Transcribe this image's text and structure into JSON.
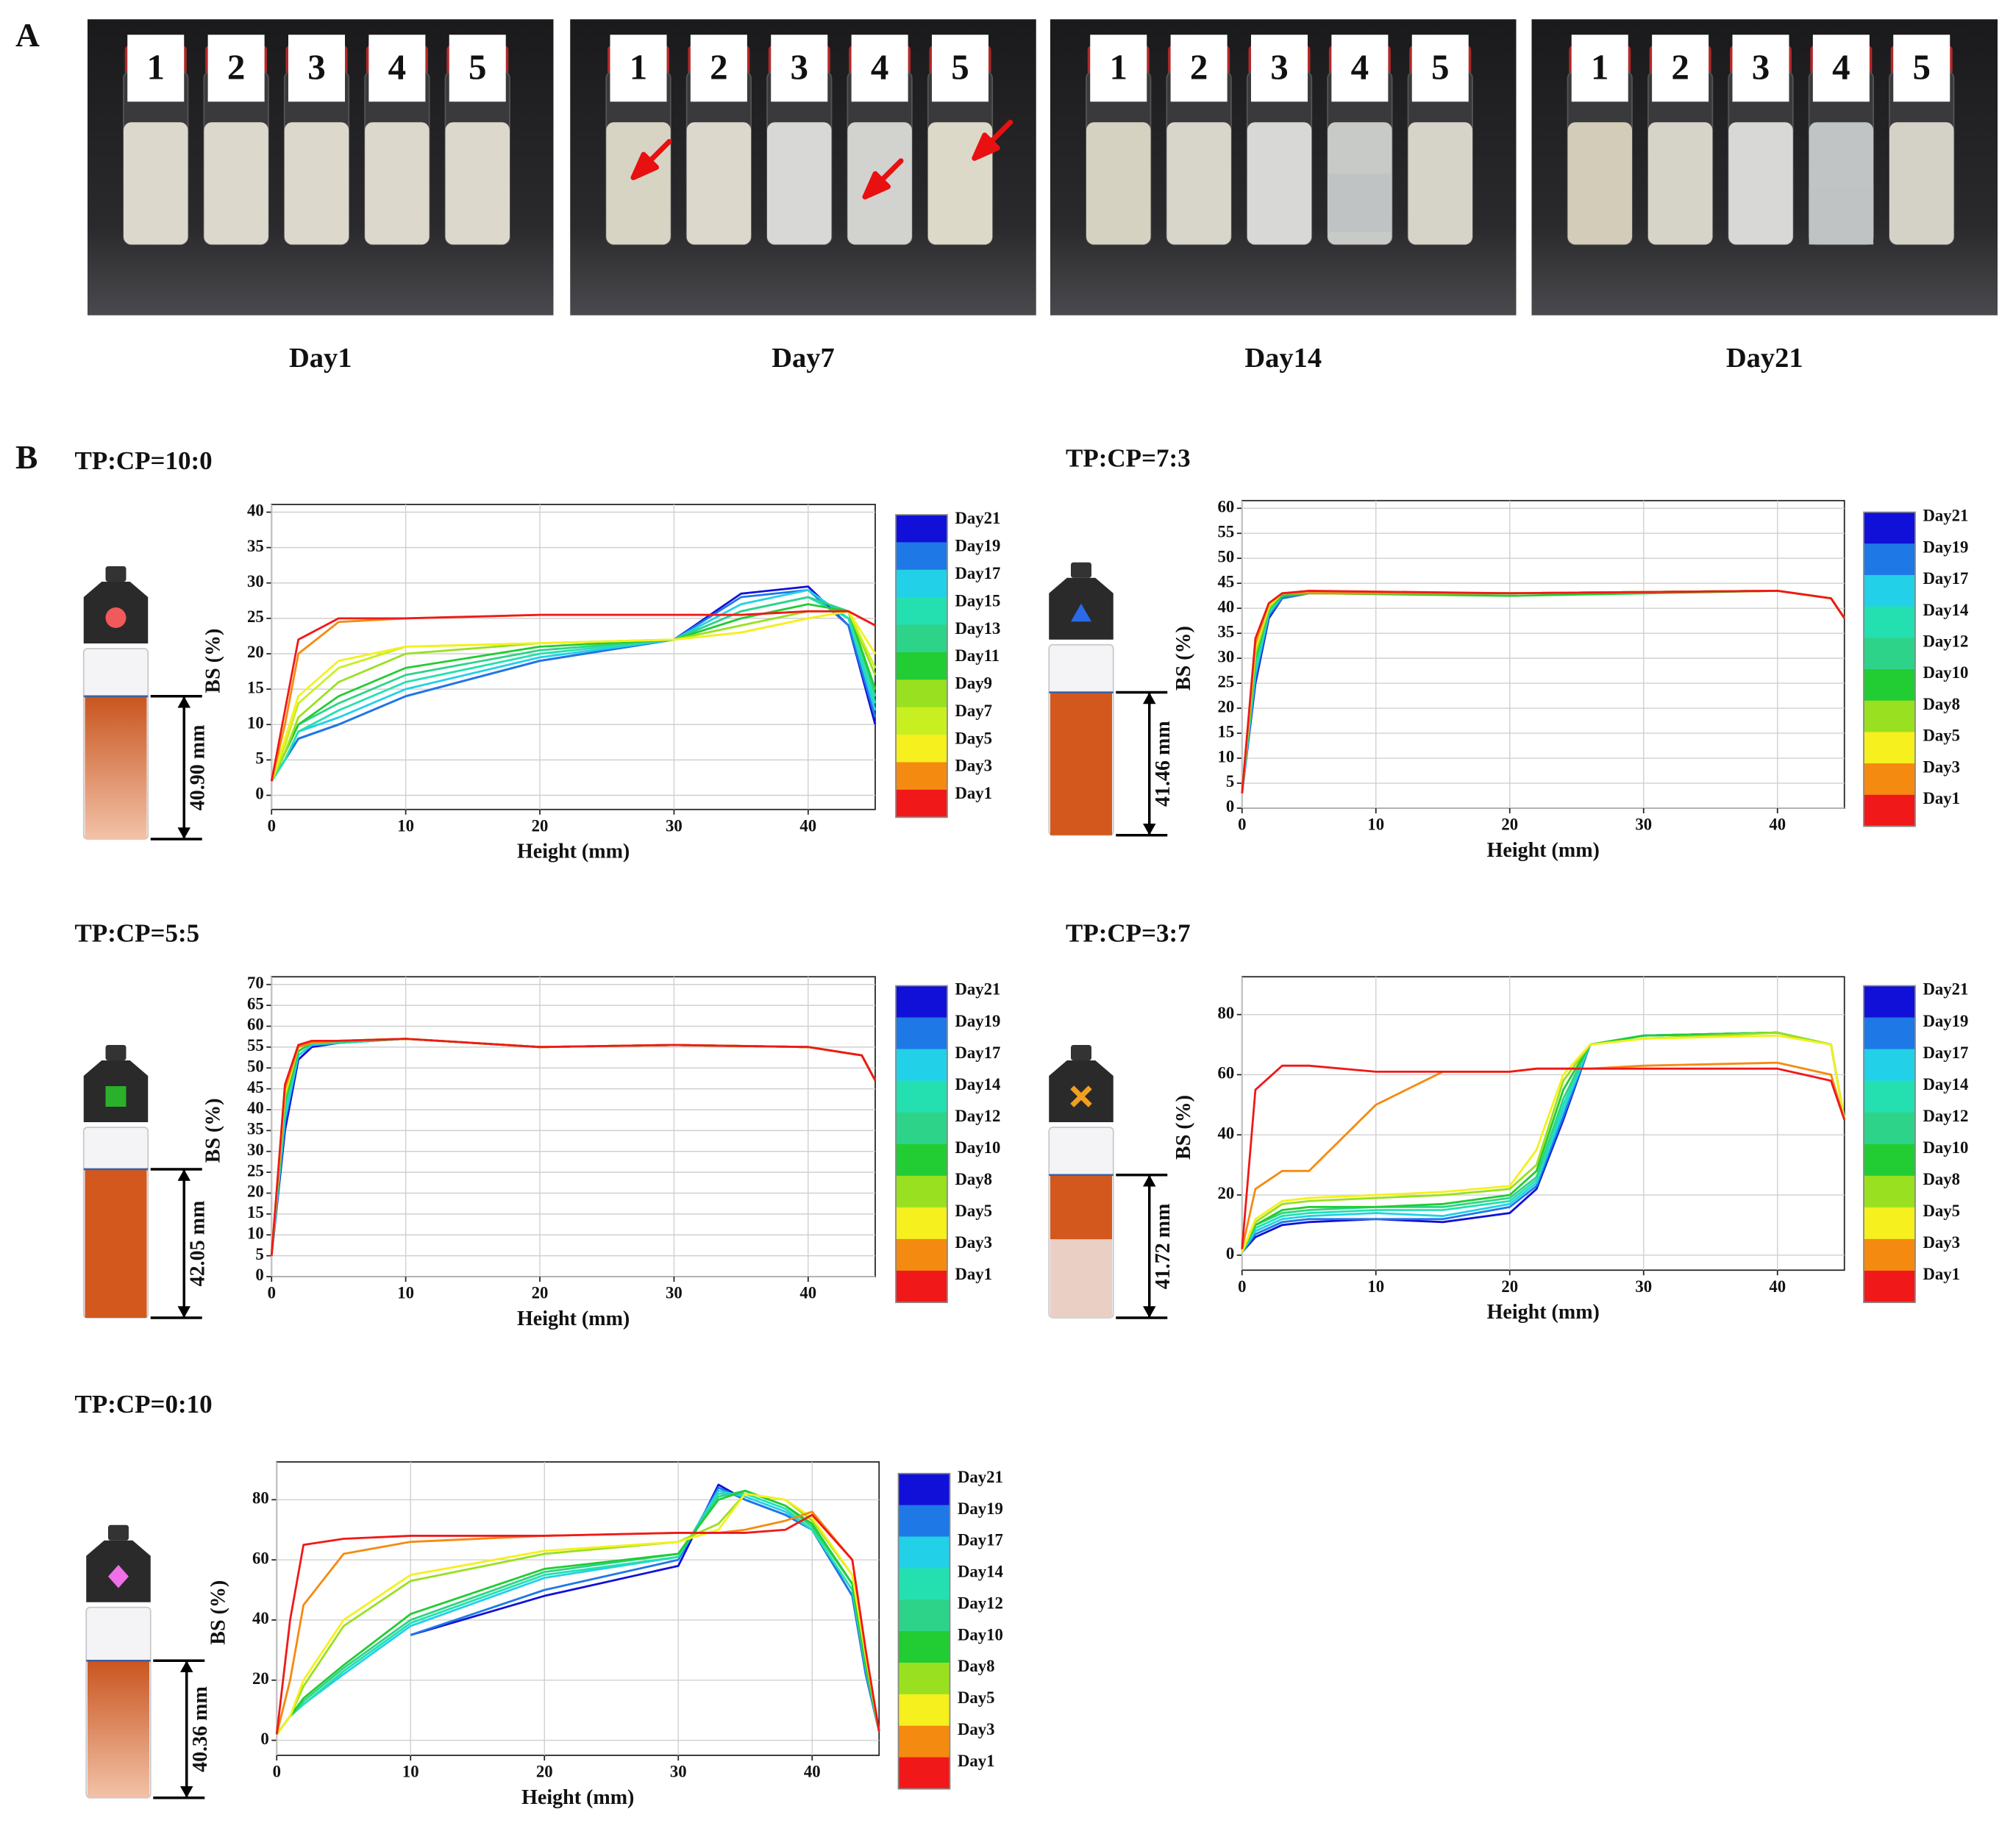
{
  "panel_labels": [
    "A",
    "B"
  ],
  "panel_a": {
    "photos": [
      {
        "day": "Day1",
        "labels": [
          "1",
          "2",
          "3",
          "4",
          "5"
        ]
      },
      {
        "day": "Day7",
        "labels": [
          "1",
          "2",
          "3",
          "4",
          "5"
        ]
      },
      {
        "day": "Day14",
        "labels": [
          "1",
          "2",
          "3",
          "4",
          "5"
        ]
      },
      {
        "day": "Day21",
        "labels": [
          "1",
          "2",
          "3",
          "4",
          "5"
        ]
      }
    ]
  },
  "chart_data": [
    {
      "type": "line",
      "title": "TP:CP=10:0",
      "xlabel": "Height (mm)",
      "ylabel": "BS (%)",
      "annotation": "40.90 mm",
      "icon_shape": "circle",
      "icon_color": "#f05a5a",
      "grid": true,
      "xlim": [
        0,
        45
      ],
      "ylim": [
        -2,
        40
      ],
      "xticks": [
        0,
        10,
        20,
        30,
        40
      ],
      "yticks": [
        0,
        5,
        10,
        15,
        20,
        25,
        30,
        35,
        40
      ],
      "x": [
        0,
        1,
        2,
        5,
        10,
        20,
        30,
        35,
        40,
        43,
        45
      ],
      "series": [
        {
          "name": "Day21",
          "color": "#1010d8",
          "values": [
            2,
            5,
            8,
            10,
            14,
            19,
            22,
            28.5,
            29.5,
            24,
            10
          ]
        },
        {
          "name": "Day19",
          "color": "#1e78e6",
          "values": [
            2,
            5,
            8,
            10,
            14,
            19,
            22,
            28,
            29,
            24,
            11
          ]
        },
        {
          "name": "Day17",
          "color": "#22d0e8",
          "values": [
            2,
            5,
            9,
            11,
            15,
            19.5,
            22,
            27,
            29,
            25,
            12
          ]
        },
        {
          "name": "Day15",
          "color": "#24e0b0",
          "values": [
            2,
            5,
            9,
            12,
            16,
            20,
            22,
            26,
            28,
            25,
            13
          ]
        },
        {
          "name": "Day13",
          "color": "#2ed38a",
          "values": [
            2,
            6,
            10,
            13,
            17,
            20.5,
            22,
            26,
            28,
            26,
            14
          ]
        },
        {
          "name": "Day11",
          "color": "#22cc33",
          "values": [
            2,
            6,
            10,
            14,
            18,
            21,
            22,
            25,
            27,
            26,
            15
          ]
        },
        {
          "name": "Day9",
          "color": "#99e020",
          "values": [
            2,
            6,
            11,
            16,
            20,
            21.5,
            22,
            24,
            26,
            26,
            17
          ]
        },
        {
          "name": "Day7",
          "color": "#c8f020",
          "values": [
            2,
            7,
            13,
            18,
            21,
            21.5,
            22,
            23,
            25,
            26,
            18
          ]
        },
        {
          "name": "Day5",
          "color": "#f5f01e",
          "values": [
            2,
            8,
            14,
            19,
            21,
            21.5,
            22,
            23,
            25,
            26,
            20
          ]
        },
        {
          "name": "Day3",
          "color": "#f58a10",
          "values": [
            2,
            10,
            20,
            24.5,
            25,
            25.5,
            25.5,
            25.5,
            26,
            26,
            24
          ]
        },
        {
          "name": "Day1",
          "color": "#f01818",
          "values": [
            2,
            12,
            22,
            25,
            25,
            25.5,
            25.5,
            25.5,
            26,
            26,
            24
          ]
        }
      ]
    },
    {
      "type": "line",
      "title": "TP:CP=7:3",
      "xlabel": "Height (mm)",
      "ylabel": "BS (%)",
      "annotation": "41.46 mm",
      "icon_shape": "triangle",
      "icon_color": "#2a6ae8",
      "grid": true,
      "xlim": [
        0,
        45
      ],
      "ylim": [
        0,
        60
      ],
      "xticks": [
        0,
        10,
        20,
        30,
        40
      ],
      "yticks": [
        0,
        5,
        10,
        15,
        20,
        25,
        30,
        35,
        40,
        45,
        50,
        55,
        60
      ],
      "x": [
        0,
        1,
        2,
        3,
        5,
        20,
        40,
        44,
        45
      ],
      "series": [
        {
          "name": "Day21",
          "color": "#1010d8",
          "values": [
            3,
            25,
            38,
            42,
            43,
            43,
            43.5,
            42,
            38
          ]
        },
        {
          "name": "Day19",
          "color": "#1e78e6",
          "values": [
            3,
            26,
            38.5,
            42,
            43,
            43,
            43.5,
            42,
            38
          ]
        },
        {
          "name": "Day17",
          "color": "#22d0e8",
          "values": [
            3,
            27,
            39,
            42.5,
            43,
            43,
            43.5,
            42,
            38
          ]
        },
        {
          "name": "Day14",
          "color": "#24e0b0",
          "values": [
            3,
            28,
            39,
            42.5,
            43,
            43,
            43.5,
            42,
            38
          ]
        },
        {
          "name": "Day12",
          "color": "#2ed38a",
          "values": [
            3,
            29,
            39.5,
            42.5,
            43,
            43,
            43.5,
            42,
            38
          ]
        },
        {
          "name": "Day10",
          "color": "#22cc33",
          "values": [
            3,
            30,
            40,
            42.5,
            43,
            42.5,
            43.5,
            42,
            38
          ]
        },
        {
          "name": "Day8",
          "color": "#99e020",
          "values": [
            3,
            31,
            40,
            43,
            43,
            43,
            43.5,
            42,
            38
          ]
        },
        {
          "name": "Day5",
          "color": "#f5f01e",
          "values": [
            3,
            32,
            40.5,
            43,
            43,
            43,
            43.5,
            42,
            38
          ]
        },
        {
          "name": "Day3",
          "color": "#f58a10",
          "values": [
            3,
            33,
            41,
            43,
            43,
            43,
            43.5,
            42,
            38
          ]
        },
        {
          "name": "Day1",
          "color": "#f01818",
          "values": [
            3,
            34,
            41,
            43,
            43.5,
            43,
            43.5,
            42,
            38
          ]
        }
      ]
    },
    {
      "type": "line",
      "title": "TP:CP=5:5",
      "xlabel": "Height (mm)",
      "ylabel": "BS (%)",
      "annotation": "42.05 mm",
      "icon_shape": "square",
      "icon_color": "#2ab02a",
      "grid": true,
      "xlim": [
        0,
        45
      ],
      "ylim": [
        0,
        70
      ],
      "xticks": [
        0,
        10,
        20,
        30,
        40
      ],
      "yticks": [
        0,
        5,
        10,
        15,
        20,
        25,
        30,
        35,
        40,
        45,
        50,
        55,
        60,
        65,
        70
      ],
      "x": [
        0,
        1,
        2,
        3,
        5,
        10,
        20,
        30,
        40,
        44,
        45
      ],
      "series": [
        {
          "name": "Day21",
          "color": "#1010d8",
          "values": [
            5,
            35,
            52,
            55,
            56,
            57,
            55,
            55.5,
            55,
            53,
            47
          ]
        },
        {
          "name": "Day19",
          "color": "#1e78e6",
          "values": [
            5,
            37,
            53,
            55.5,
            56,
            57,
            55,
            55.5,
            55,
            53,
            47
          ]
        },
        {
          "name": "Day17",
          "color": "#22d0e8",
          "values": [
            5,
            38,
            53,
            55.5,
            56,
            57,
            55,
            55.5,
            55,
            53,
            47
          ]
        },
        {
          "name": "Day14",
          "color": "#24e0b0",
          "values": [
            5,
            40,
            54,
            56,
            56,
            57,
            55,
            55.5,
            55,
            53,
            47
          ]
        },
        {
          "name": "Day12",
          "color": "#2ed38a",
          "values": [
            5,
            41,
            54,
            56,
            56,
            57,
            55,
            55.5,
            55,
            53,
            47
          ]
        },
        {
          "name": "Day10",
          "color": "#22cc33",
          "values": [
            5,
            42,
            54,
            56,
            56.5,
            57,
            55,
            55.5,
            55,
            53,
            47
          ]
        },
        {
          "name": "Day8",
          "color": "#99e020",
          "values": [
            5,
            43,
            55,
            56,
            56.5,
            57,
            55,
            55.5,
            55,
            53,
            47
          ]
        },
        {
          "name": "Day5",
          "color": "#f5f01e",
          "values": [
            5,
            44,
            55,
            56,
            56.5,
            57,
            55,
            55.5,
            55,
            53,
            47
          ]
        },
        {
          "name": "Day3",
          "color": "#f58a10",
          "values": [
            5,
            45,
            55,
            56,
            56.5,
            57,
            55,
            55.5,
            55,
            53,
            47
          ]
        },
        {
          "name": "Day1",
          "color": "#f01818",
          "values": [
            5,
            46,
            55.5,
            56.5,
            56.5,
            57,
            55,
            55.5,
            55,
            53,
            47
          ]
        }
      ]
    },
    {
      "type": "line",
      "title": "TP:CP=3:7",
      "xlabel": "Height (mm)",
      "ylabel": "BS (%)",
      "annotation": "41.72 mm",
      "icon_shape": "cross",
      "icon_color": "#f0a020",
      "grid": true,
      "xlim": [
        0,
        45
      ],
      "ylim": [
        -5,
        90
      ],
      "xticks": [
        0,
        10,
        20,
        30,
        40
      ],
      "yticks": [
        0,
        20,
        40,
        60,
        80
      ],
      "x": [
        0,
        1,
        3,
        5,
        10,
        15,
        20,
        22,
        24,
        26,
        30,
        40,
        44,
        45
      ],
      "series": [
        {
          "name": "Day21",
          "color": "#1010d8",
          "values": [
            1,
            6,
            10,
            11,
            12,
            11,
            14,
            22,
            45,
            70,
            73,
            74,
            70,
            45
          ]
        },
        {
          "name": "Day19",
          "color": "#1e78e6",
          "values": [
            1,
            7,
            11,
            12,
            12,
            12,
            16,
            23,
            46,
            70,
            73,
            74,
            70,
            45
          ]
        },
        {
          "name": "Day17",
          "color": "#22d0e8",
          "values": [
            1,
            8,
            12,
            13,
            14,
            13,
            17,
            24,
            48,
            70,
            73,
            74,
            70,
            45
          ]
        },
        {
          "name": "Day14",
          "color": "#24e0b0",
          "values": [
            1,
            9,
            13,
            14,
            15,
            15,
            18,
            25,
            50,
            70,
            73,
            74,
            70,
            45
          ]
        },
        {
          "name": "Day12",
          "color": "#2ed38a",
          "values": [
            1,
            10,
            14,
            15,
            16,
            16,
            19,
            26,
            52,
            70,
            73,
            74,
            70,
            45
          ]
        },
        {
          "name": "Day10",
          "color": "#22cc33",
          "values": [
            1,
            10,
            15,
            16,
            16,
            17,
            20,
            28,
            55,
            70,
            73,
            74,
            70,
            45
          ]
        },
        {
          "name": "Day8",
          "color": "#99e020",
          "values": [
            1,
            11,
            17,
            18,
            19,
            20,
            22,
            30,
            58,
            70,
            72,
            74,
            70,
            45
          ]
        },
        {
          "name": "Day5",
          "color": "#f5f01e",
          "values": [
            1,
            12,
            18,
            19,
            20,
            21,
            23,
            35,
            60,
            70,
            72,
            73,
            70,
            45
          ]
        },
        {
          "name": "Day3",
          "color": "#f58a10",
          "values": [
            2,
            22,
            28,
            28,
            50,
            61,
            61,
            62,
            62,
            62,
            63,
            64,
            60,
            45
          ]
        },
        {
          "name": "Day1",
          "color": "#f01818",
          "values": [
            2,
            55,
            63,
            63,
            61,
            61,
            61,
            62,
            62,
            62,
            62,
            62,
            58,
            45
          ]
        }
      ]
    },
    {
      "type": "line",
      "title": "TP:CP=0:10",
      "xlabel": "Height (mm)",
      "ylabel": "BS (%)",
      "annotation": "40.36 mm",
      "icon_shape": "diamond",
      "icon_color": "#f070e8",
      "grid": true,
      "xlim": [
        0,
        45
      ],
      "ylim": [
        -5,
        90
      ],
      "xticks": [
        0,
        10,
        20,
        30,
        40
      ],
      "yticks": [
        0,
        20,
        40,
        60,
        80
      ],
      "x": [
        0,
        1,
        2,
        5,
        10,
        20,
        30,
        33,
        35,
        38,
        40,
        43,
        44,
        45
      ],
      "series": [
        {
          "name": "Day21",
          "color": "#1010d8",
          "values": [
            null,
            null,
            null,
            null,
            35,
            48,
            58,
            85,
            80,
            75,
            70,
            48,
            22,
            3
          ]
        },
        {
          "name": "Day19",
          "color": "#1e78e6",
          "values": [
            null,
            null,
            null,
            null,
            35,
            50,
            60,
            84,
            80,
            75,
            70,
            48,
            22,
            3
          ]
        },
        {
          "name": "Day17",
          "color": "#22d0e8",
          "values": [
            2,
            8,
            12,
            22,
            38,
            54,
            61,
            83,
            81,
            76,
            70,
            50,
            24,
            3
          ]
        },
        {
          "name": "Day14",
          "color": "#24e0b0",
          "values": [
            2,
            8,
            12,
            23,
            39,
            55,
            61,
            82,
            82,
            77,
            70,
            50,
            24,
            3
          ]
        },
        {
          "name": "Day12",
          "color": "#2ed38a",
          "values": [
            2,
            8,
            13,
            24,
            40,
            56,
            62,
            81,
            83,
            78,
            71,
            52,
            25,
            3
          ]
        },
        {
          "name": "Day10",
          "color": "#22cc33",
          "values": [
            2,
            8,
            14,
            25,
            42,
            57,
            62,
            80,
            83,
            78,
            72,
            52,
            25,
            3
          ]
        },
        {
          "name": "Day8",
          "color": "#99e020",
          "values": [
            2,
            8,
            18,
            38,
            53,
            62,
            66,
            72,
            82,
            80,
            73,
            55,
            28,
            3
          ]
        },
        {
          "name": "Day5",
          "color": "#f5f01e",
          "values": [
            2,
            8,
            20,
            40,
            55,
            63,
            66,
            70,
            82,
            80,
            74,
            55,
            28,
            3
          ]
        },
        {
          "name": "Day3",
          "color": "#f58a10",
          "values": [
            2,
            20,
            45,
            62,
            66,
            68,
            69,
            69,
            70,
            73,
            76,
            60,
            30,
            3
          ]
        },
        {
          "name": "Day1",
          "color": "#f01818",
          "values": [
            2,
            40,
            65,
            67,
            68,
            68,
            69,
            69,
            69,
            70,
            75,
            60,
            30,
            3
          ]
        }
      ]
    }
  ]
}
